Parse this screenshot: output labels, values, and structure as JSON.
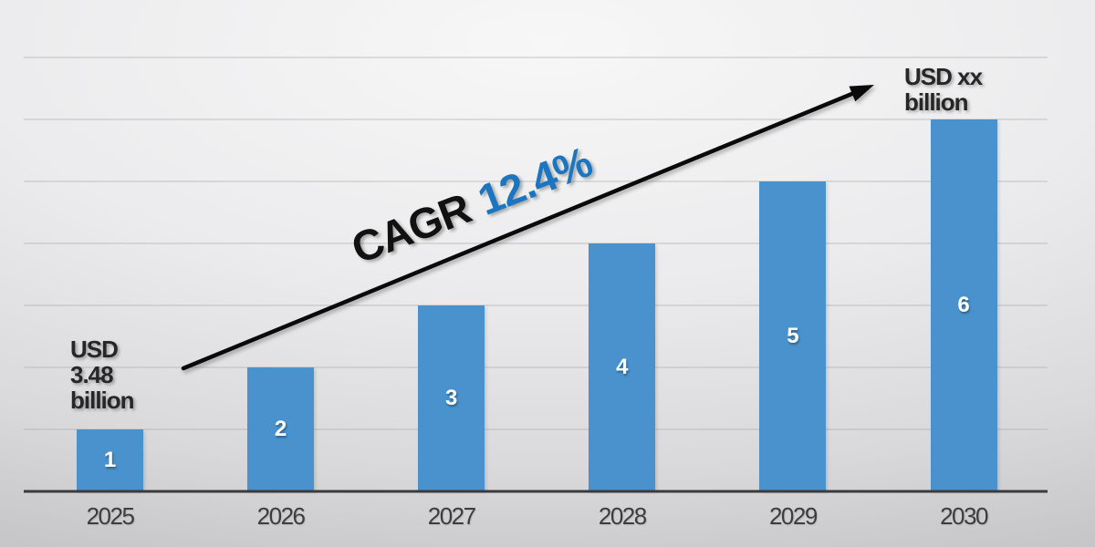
{
  "chart_data": {
    "type": "bar",
    "categories": [
      "2025",
      "2026",
      "2027",
      "2028",
      "2029",
      "2030"
    ],
    "values": [
      1,
      2,
      3,
      4,
      5,
      6
    ],
    "bar_value_labels": [
      "1",
      "2",
      "3",
      "4",
      "5",
      "6"
    ],
    "title": "",
    "xlabel": "",
    "ylabel": "",
    "ylim": [
      0,
      7
    ],
    "grid": "horizontal",
    "legend": "none",
    "annotations": {
      "first_bar": {
        "lines": [
          "USD",
          "3.48",
          "billion"
        ]
      },
      "last_bar": {
        "lines": [
          "USD xx",
          "billion"
        ]
      },
      "trend": {
        "label": "CAGR",
        "value": "12.4%"
      }
    }
  },
  "colors": {
    "bar": "#4992cd",
    "bar_label": "#ffffff",
    "cagr_label": "#111111",
    "cagr_value": "#1b75c0",
    "arrow": "#0a0a0a",
    "axis_line": "#3b3b3b",
    "gridline": "#a8a8a8",
    "tick_label": "#3d3d3d",
    "annotation_text": "#262626"
  }
}
